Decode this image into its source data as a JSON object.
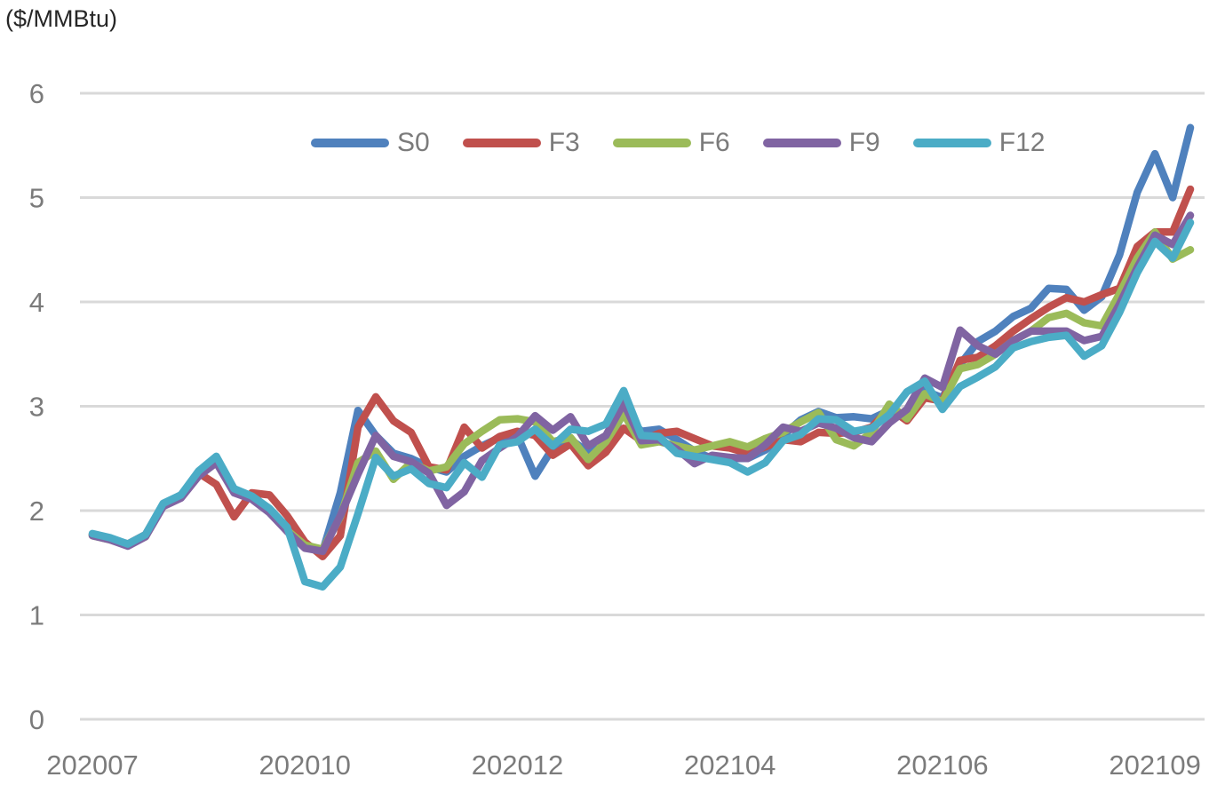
{
  "chart_data": {
    "type": "line",
    "title": "($/MMBtu)",
    "x_labels": [
      "202007",
      "202010",
      "202012",
      "202104",
      "202106",
      "202109"
    ],
    "x_label_indices": [
      0,
      12,
      24,
      36,
      48,
      60
    ],
    "n_points": 63,
    "y_ticks": [
      0,
      1,
      2,
      3,
      4,
      5,
      6
    ],
    "ylim": [
      0,
      6
    ],
    "xlabel": "",
    "ylabel": "($/MMBtu)",
    "grid": "horizontal-only",
    "legend_position": "top-center",
    "colors": {
      "gridline": "#d9d9d9",
      "axis_text": "#7b7b7b",
      "title_text": "#262626",
      "background": "#ffffff"
    },
    "series": [
      {
        "name": "S0",
        "color": "#4f81bd",
        "values": [
          1.77,
          1.73,
          1.67,
          1.76,
          2.06,
          2.14,
          2.36,
          2.49,
          2.2,
          2.13,
          1.99,
          1.82,
          1.68,
          1.61,
          2.17,
          2.96,
          2.72,
          2.55,
          2.5,
          2.42,
          2.37,
          2.52,
          2.62,
          2.7,
          2.72,
          2.33,
          2.6,
          2.68,
          2.56,
          2.62,
          2.94,
          2.76,
          2.78,
          2.68,
          2.57,
          2.5,
          2.5,
          2.5,
          2.58,
          2.72,
          2.87,
          2.95,
          2.89,
          2.9,
          2.88,
          2.96,
          2.89,
          3.15,
          3.08,
          3.4,
          3.62,
          3.72,
          3.86,
          3.94,
          4.13,
          4.12,
          3.92,
          4.05,
          4.45,
          5.05,
          5.42,
          5.0,
          5.67
        ]
      },
      {
        "name": "F3",
        "color": "#c0504d",
        "values": [
          1.77,
          1.73,
          1.68,
          1.77,
          2.06,
          2.15,
          2.36,
          2.25,
          1.94,
          2.17,
          2.15,
          1.95,
          1.7,
          1.56,
          1.76,
          2.8,
          3.09,
          2.86,
          2.75,
          2.42,
          2.39,
          2.8,
          2.6,
          2.71,
          2.76,
          2.72,
          2.53,
          2.64,
          2.43,
          2.56,
          2.79,
          2.67,
          2.74,
          2.76,
          2.69,
          2.62,
          2.6,
          2.55,
          2.61,
          2.68,
          2.66,
          2.75,
          2.74,
          2.75,
          2.8,
          2.98,
          2.86,
          3.08,
          3.05,
          3.44,
          3.47,
          3.58,
          3.72,
          3.84,
          3.95,
          4.04,
          4.0,
          4.07,
          4.13,
          4.53,
          4.67,
          4.67,
          5.08
        ]
      },
      {
        "name": "F6",
        "color": "#9bbb59",
        "values": [
          1.76,
          1.72,
          1.67,
          1.75,
          2.05,
          2.13,
          2.34,
          2.47,
          2.18,
          2.12,
          1.99,
          1.81,
          1.67,
          1.63,
          1.94,
          2.46,
          2.57,
          2.3,
          2.46,
          2.38,
          2.42,
          2.64,
          2.76,
          2.87,
          2.88,
          2.85,
          2.66,
          2.7,
          2.49,
          2.66,
          2.93,
          2.63,
          2.66,
          2.62,
          2.58,
          2.62,
          2.66,
          2.61,
          2.69,
          2.75,
          2.85,
          2.94,
          2.68,
          2.62,
          2.75,
          3.02,
          2.88,
          3.12,
          3.04,
          3.36,
          3.4,
          3.5,
          3.63,
          3.72,
          3.85,
          3.89,
          3.8,
          3.77,
          4.08,
          4.42,
          4.67,
          4.41,
          4.5
        ]
      },
      {
        "name": "F9",
        "color": "#8064a2",
        "values": [
          1.76,
          1.72,
          1.66,
          1.75,
          2.04,
          2.12,
          2.33,
          2.46,
          2.17,
          2.11,
          1.98,
          1.8,
          1.64,
          1.61,
          1.95,
          2.35,
          2.72,
          2.52,
          2.47,
          2.36,
          2.05,
          2.18,
          2.48,
          2.6,
          2.71,
          2.91,
          2.77,
          2.9,
          2.62,
          2.72,
          3.03,
          2.67,
          2.68,
          2.59,
          2.45,
          2.53,
          2.51,
          2.5,
          2.63,
          2.8,
          2.76,
          2.84,
          2.79,
          2.7,
          2.66,
          2.84,
          2.97,
          3.27,
          3.18,
          3.73,
          3.58,
          3.5,
          3.63,
          3.72,
          3.72,
          3.72,
          3.63,
          3.67,
          3.98,
          4.33,
          4.64,
          4.55,
          4.83
        ]
      },
      {
        "name": "F12",
        "color": "#4bacc6",
        "values": [
          1.78,
          1.74,
          1.68,
          1.77,
          2.07,
          2.15,
          2.38,
          2.52,
          2.21,
          2.14,
          2.02,
          1.84,
          1.32,
          1.27,
          1.46,
          1.97,
          2.51,
          2.33,
          2.4,
          2.26,
          2.22,
          2.46,
          2.32,
          2.63,
          2.66,
          2.78,
          2.62,
          2.78,
          2.76,
          2.83,
          3.15,
          2.72,
          2.71,
          2.55,
          2.52,
          2.49,
          2.46,
          2.37,
          2.46,
          2.67,
          2.73,
          2.88,
          2.87,
          2.76,
          2.79,
          2.92,
          3.14,
          3.24,
          2.97,
          3.19,
          3.28,
          3.38,
          3.56,
          3.62,
          3.66,
          3.68,
          3.48,
          3.58,
          3.9,
          4.28,
          4.58,
          4.42,
          4.76
        ]
      }
    ]
  }
}
